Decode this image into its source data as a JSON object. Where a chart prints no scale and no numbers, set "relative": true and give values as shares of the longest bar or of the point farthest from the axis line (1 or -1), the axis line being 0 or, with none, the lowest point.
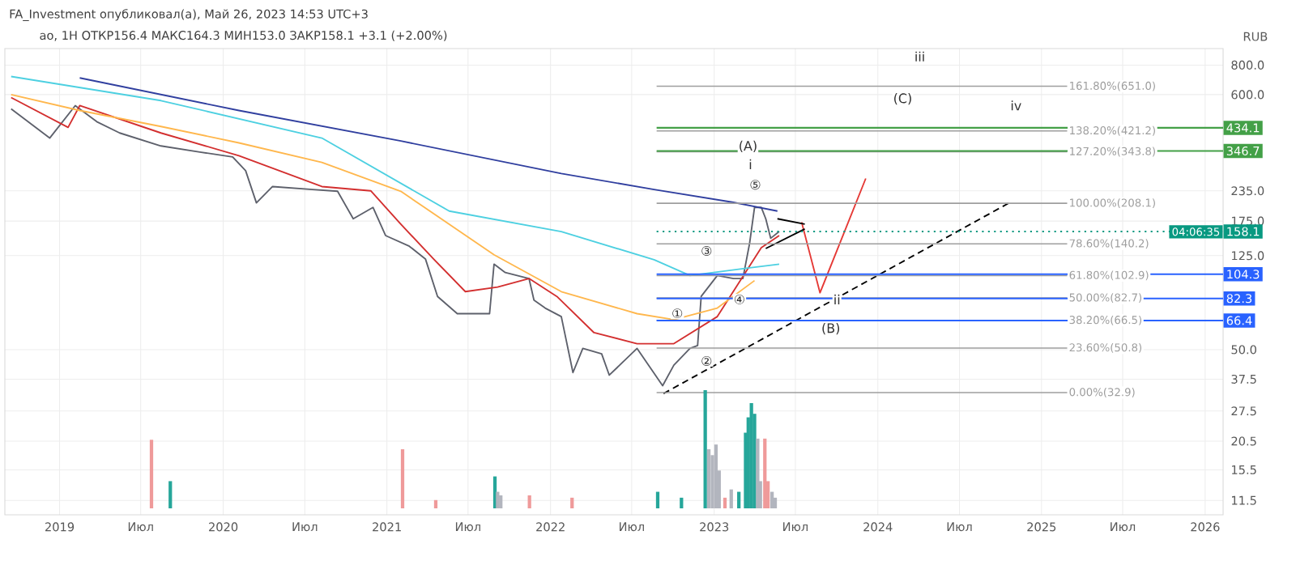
{
  "chart_data": [
    {
      "type": "line",
      "tick_labels": "y",
      "title": "FA_Investment опубликовал(а), Май 26, 2023 14:53 UTC+3",
      "subtitle": "ао, 1Н ОТКР156.4 МАКС164.3 МИН153.0 ЗАКР158.1 +3.1 (+2.00%)",
      "ylabel": "RUB",
      "log": true,
      "grid": true,
      "xlim": [
        "2018-09-01",
        "2026-02-10"
      ],
      "ylim": [
        10,
        940
      ],
      "xticks": [
        "2019",
        "2019-07",
        "2020",
        "2020-07",
        "2021",
        "2021-07",
        "2022",
        "2022-07",
        "2023",
        "2023-07",
        "2024",
        "2024-07",
        "2025",
        "2025-07",
        "2026"
      ],
      "yticks": [
        {
          "value": 800,
          "label": "800.0"
        },
        {
          "value": 600,
          "label": "600.0"
        },
        {
          "value": 235,
          "label": "235.0"
        },
        {
          "value": 175,
          "label": "175.0"
        },
        {
          "value": 125,
          "label": "125.0"
        },
        {
          "value": 50,
          "label": "50.0"
        },
        37.5,
        27.5,
        20.5,
        15.5,
        11.5
      ],
      "series": [
        {
          "color": "#5d606b",
          "x": [
            "2018-09-15",
            "2018-12-10",
            "2019-02-05",
            "2019-03-25",
            "2019-05-15",
            "2019-08-15",
            "2019-11-10",
            "2020-01-22",
            "2020-02-20",
            "2020-03-15",
            "2020-04-20",
            "2020-07-18",
            "2020-09-12",
            "2020-10-17",
            "2020-11-30",
            "2020-12-28",
            "2021-02-20",
            "2021-03-28",
            "2021-04-24",
            "2021-06-07",
            "2021-08-18",
            "2021-08-28",
            "2021-09-22",
            "2021-11-14",
            "2021-11-25",
            "2021-12-20",
            "2022-01-25",
            "2022-02-20",
            "2022-03-14",
            "2022-04-25",
            "2022-05-12",
            "2022-07-13",
            "2022-09-08",
            "2022-10-03",
            "2022-11-08",
            "2022-11-25",
            "2022-12-03",
            "2023-01-08",
            "2023-02-13",
            "2023-03-06",
            "2023-03-21",
            "2023-04-01",
            "2023-04-16",
            "2023-04-26",
            "2023-05-07",
            "2023-05-26"
          ],
          "values": [
            522,
            393,
            539,
            461,
            413,
            364,
            343,
            327,
            286,
            209,
            245,
            238,
            234,
            179,
            200,
            152,
            137,
            121,
            84,
            71,
            71,
            115,
            106,
            100,
            81,
            75,
            69,
            40,
            50.6,
            48,
            39,
            50.6,
            35.2,
            43,
            50.6,
            52,
            84,
            103,
            100,
            100,
            141,
            200,
            200,
            179,
            148,
            158.1
          ]
        },
        {
          "color": "#d32f2f",
          "x": [
            "2018-09-15",
            "2019-01-20",
            "2019-02-15",
            "2019-08-15",
            "2020-02-05",
            "2020-08-08",
            "2020-11-25",
            "2021-02-01",
            "2021-04-15",
            "2021-06-25",
            "2021-09-05",
            "2021-11-14",
            "2022-01-15",
            "2022-04-08",
            "2022-07-13",
            "2022-10-03",
            "2023-01-08",
            "2023-04-16",
            "2023-05-26"
          ],
          "values": [
            583,
            436,
            539,
            413,
            331,
            245,
            235,
            170,
            121,
            88,
            92,
            100,
            84,
            59,
            53,
            53,
            69,
            135,
            152
          ]
        },
        {
          "color": "#ffb74d",
          "x": [
            "2018-09-15",
            "2019-02-15",
            "2019-08-15",
            "2020-02-05",
            "2020-08-08",
            "2021-02-01",
            "2021-08-28",
            "2022-01-25",
            "2022-07-13",
            "2022-10-03",
            "2023-01-08",
            "2023-04-01"
          ],
          "values": [
            600,
            514,
            440,
            375,
            310,
            234,
            126,
            88,
            71,
            67,
            75,
            98
          ]
        },
        {
          "color": "#4dd0e1",
          "x": [
            "2018-09-15",
            "2019-08-15",
            "2020-08-08",
            "2021-05-20",
            "2022-01-25",
            "2022-08-20",
            "2022-11-08",
            "2023-03-21",
            "2023-05-26"
          ],
          "values": [
            716,
            566,
            393,
            193,
            158,
            120,
            103,
            111,
            115
          ]
        },
        {
          "color": "#303f9f",
          "x": [
            "2019-02-15",
            "2020-02-05",
            "2021-02-01",
            "2022-01-25",
            "2022-08-20",
            "2023-02-13",
            "2023-05-22"
          ],
          "values": [
            706,
            514,
            382,
            278,
            238,
            210,
            193
          ]
        },
        {
          "color": "#e53935",
          "x": [
            "2023-07-15",
            "2023-08-25",
            "2023-12-05"
          ],
          "values": [
            173,
            87,
            265
          ]
        },
        {
          "color": "#000000",
          "line_style": "dashed",
          "x": [
            "2022-09-10",
            "2024-10-20"
          ],
          "values": [
            32.6,
            209
          ]
        },
        {
          "color": "#000000",
          "x": [
            "2023-05-22",
            "2023-07-22"
          ],
          "values": [
            179,
            170
          ]
        },
        {
          "color": "#000000",
          "x": [
            "2023-04-26",
            "2023-07-22"
          ],
          "values": [
            134,
            162
          ]
        }
      ],
      "ref_lines": [
        {
          "axis": "y",
          "value": 651.0,
          "label": "161.80%(651.0)",
          "color": "#9e9e9e"
        },
        {
          "axis": "y",
          "value": 421.2,
          "label": "138.20%(421.2)",
          "color": "#9e9e9e"
        },
        {
          "axis": "y",
          "value": 343.8,
          "label": "127.20%(343.8)",
          "color": "#9e9e9e"
        },
        {
          "axis": "y",
          "value": 208.1,
          "label": "100.00%(208.1)",
          "color": "#9e9e9e"
        },
        {
          "axis": "y",
          "value": 140.2,
          "label": "78.60%(140.2)",
          "color": "#9e9e9e"
        },
        {
          "axis": "y",
          "value": 102.9,
          "label": "61.80%(102.9)",
          "color": "#9e9e9e"
        },
        {
          "axis": "y",
          "value": 82.7,
          "label": "50.00%(82.7)",
          "color": "#9e9e9e"
        },
        {
          "axis": "y",
          "value": 66.5,
          "label": "38.20%(66.5)",
          "color": "#9e9e9e"
        },
        {
          "axis": "y",
          "value": 50.8,
          "label": "23.60%(50.8)",
          "color": "#9e9e9e"
        },
        {
          "axis": "y",
          "value": 32.9,
          "label": "0.00%(32.9)",
          "color": "#9e9e9e"
        },
        {
          "axis": "y",
          "value": 434.1,
          "label": "434.1",
          "color": "#43a047"
        },
        {
          "axis": "y",
          "value": 346.7,
          "label": "346.7",
          "color": "#43a047"
        },
        {
          "axis": "y",
          "value": 158.1,
          "label": "158.1",
          "color": "#089981",
          "line_style": "dotted"
        },
        {
          "axis": "y",
          "value": 104.3,
          "label": "104.3",
          "color": "#2962ff"
        },
        {
          "axis": "y",
          "value": 82.3,
          "label": "82.3",
          "color": "#2962ff"
        },
        {
          "axis": "y",
          "value": 66.4,
          "label": "66.4",
          "color": "#2962ff"
        }
      ],
      "annotations": [
        "iii",
        "(C)",
        "iv",
        "(A)",
        "i",
        "⑤",
        "③",
        "④",
        "①",
        "②",
        "ii",
        "(B)",
        "04:06:35"
      ]
    },
    {
      "type": "bar",
      "relative": true,
      "tick_labels": "x",
      "xlim": [
        "2018-09-01",
        "2026-02-10"
      ],
      "xticks": [
        "2019",
        {
          "value": "2019-07",
          "label": "Июл"
        },
        "2020",
        {
          "value": "2020-07",
          "label": "Июл"
        },
        "2021",
        {
          "value": "2021-07",
          "label": "Июл"
        },
        "2022",
        {
          "value": "2022-07",
          "label": "Июл"
        },
        "2023",
        {
          "value": "2023-07",
          "label": "Июл"
        },
        "2024",
        {
          "value": "2024-07",
          "label": "Июл"
        },
        "2025",
        {
          "value": "2025-07",
          "label": "Июл"
        },
        "2026"
      ],
      "x": [
        "2019-07-25",
        "2019-09-05",
        "2021-02-05",
        "2021-04-20",
        "2021-08-30",
        "2021-09-05",
        "2021-09-12",
        "2021-11-15",
        "2022-02-18",
        "2022-08-28",
        "2022-10-20",
        "2022-12-12",
        "2022-12-20",
        "2022-12-28",
        "2023-01-05",
        "2023-01-12",
        "2023-01-25",
        "2023-02-08",
        "2023-02-25",
        "2023-03-12",
        "2023-03-18",
        "2023-03-25",
        "2023-04-01",
        "2023-04-08",
        "2023-04-14",
        "2023-04-24",
        "2023-05-01",
        "2023-05-10",
        "2023-05-17"
      ],
      "values": [
        0.58,
        0.23,
        0.5,
        0.07,
        0.27,
        0.14,
        0.11,
        0.11,
        0.09,
        0.14,
        0.09,
        1,
        0.5,
        0.45,
        0.54,
        0.32,
        0.09,
        0.16,
        0.14,
        0.64,
        0.77,
        0.89,
        0.8,
        0.59,
        0.23,
        0.59,
        0.23,
        0.14,
        0.09
      ],
      "colors": [
        "#ef9a9a",
        "#26a69a",
        "#ef9a9a",
        "#ef9a9a",
        "#26a69a",
        "#b2b5be",
        "#b2b5be",
        "#ef9a9a",
        "#ef9a9a",
        "#26a69a",
        "#26a69a",
        "#26a69a",
        "#b2b5be",
        "#b2b5be",
        "#b2b5be",
        "#b2b5be",
        "#ef9a9a",
        "#b2b5be",
        "#26a69a",
        "#26a69a",
        "#26a69a",
        "#26a69a",
        "#26a69a",
        "#b2b5be",
        "#b2b5be",
        "#ef9a9a",
        "#ef9a9a",
        "#b2b5be",
        "#b2b5be"
      ]
    }
  ]
}
